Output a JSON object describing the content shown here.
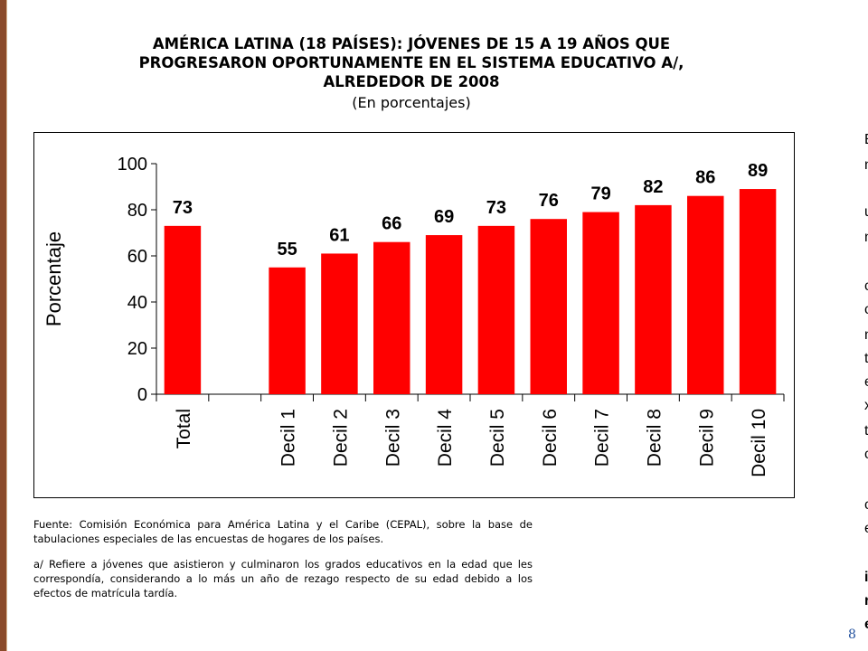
{
  "title_lines": [
    "AMÉRICA LATINA (18 PAÍSES): JÓVENES DE 15 A 19 AÑOS QUE",
    "PROGRESARON OPORTUNAMENTE EN EL SISTEMA EDUCATIVO A/,",
    "ALREDEDOR DE 2008"
  ],
  "subtitle": "(En porcentajes)",
  "chart_data": {
    "type": "bar",
    "categories": [
      "Total",
      "",
      "Decil 1",
      "Decil 2",
      "Decil 3",
      "Decil 4",
      "Decil 5",
      "Decil 6",
      "Decil 7",
      "Decil 8",
      "Decil 9",
      "Decil 10"
    ],
    "values": [
      73,
      null,
      55,
      61,
      66,
      69,
      73,
      76,
      79,
      82,
      86,
      89
    ],
    "data_labels": [
      "73",
      "",
      "55",
      "61",
      "66",
      "69",
      "73",
      "76",
      "79",
      "82",
      "86",
      "89"
    ],
    "ylabel": "Porcentaje",
    "xlabel": "",
    "ylim": [
      0,
      100
    ],
    "yticks": [
      0,
      20,
      40,
      60,
      80,
      100
    ],
    "bar_color": "#ff0000",
    "grid": false,
    "legend": "none"
  },
  "notes": {
    "source": "Fuente: Comisión Económica para América Latina y el Caribe (CEPAL), sobre la base de tabulaciones especiales de las encuestas de hogares de los países.",
    "footnote": "a/ Refiere a jóvenes que asistieron y culminaron los grados educativos en la edad que les correspondía, considerando a lo más un año de rezago respecto de su edad debido a los efectos de matrícula tardía."
  },
  "side_fragments": [
    "E",
    "n",
    "u",
    "n",
    "c",
    "c",
    "n",
    "t",
    "e",
    "x",
    "t",
    "c",
    "c",
    "e",
    "i",
    "r",
    "e"
  ],
  "page_number": "8",
  "colors": {
    "accent_rule": "#8b4a2a",
    "page_number": "#1f4e9c"
  }
}
